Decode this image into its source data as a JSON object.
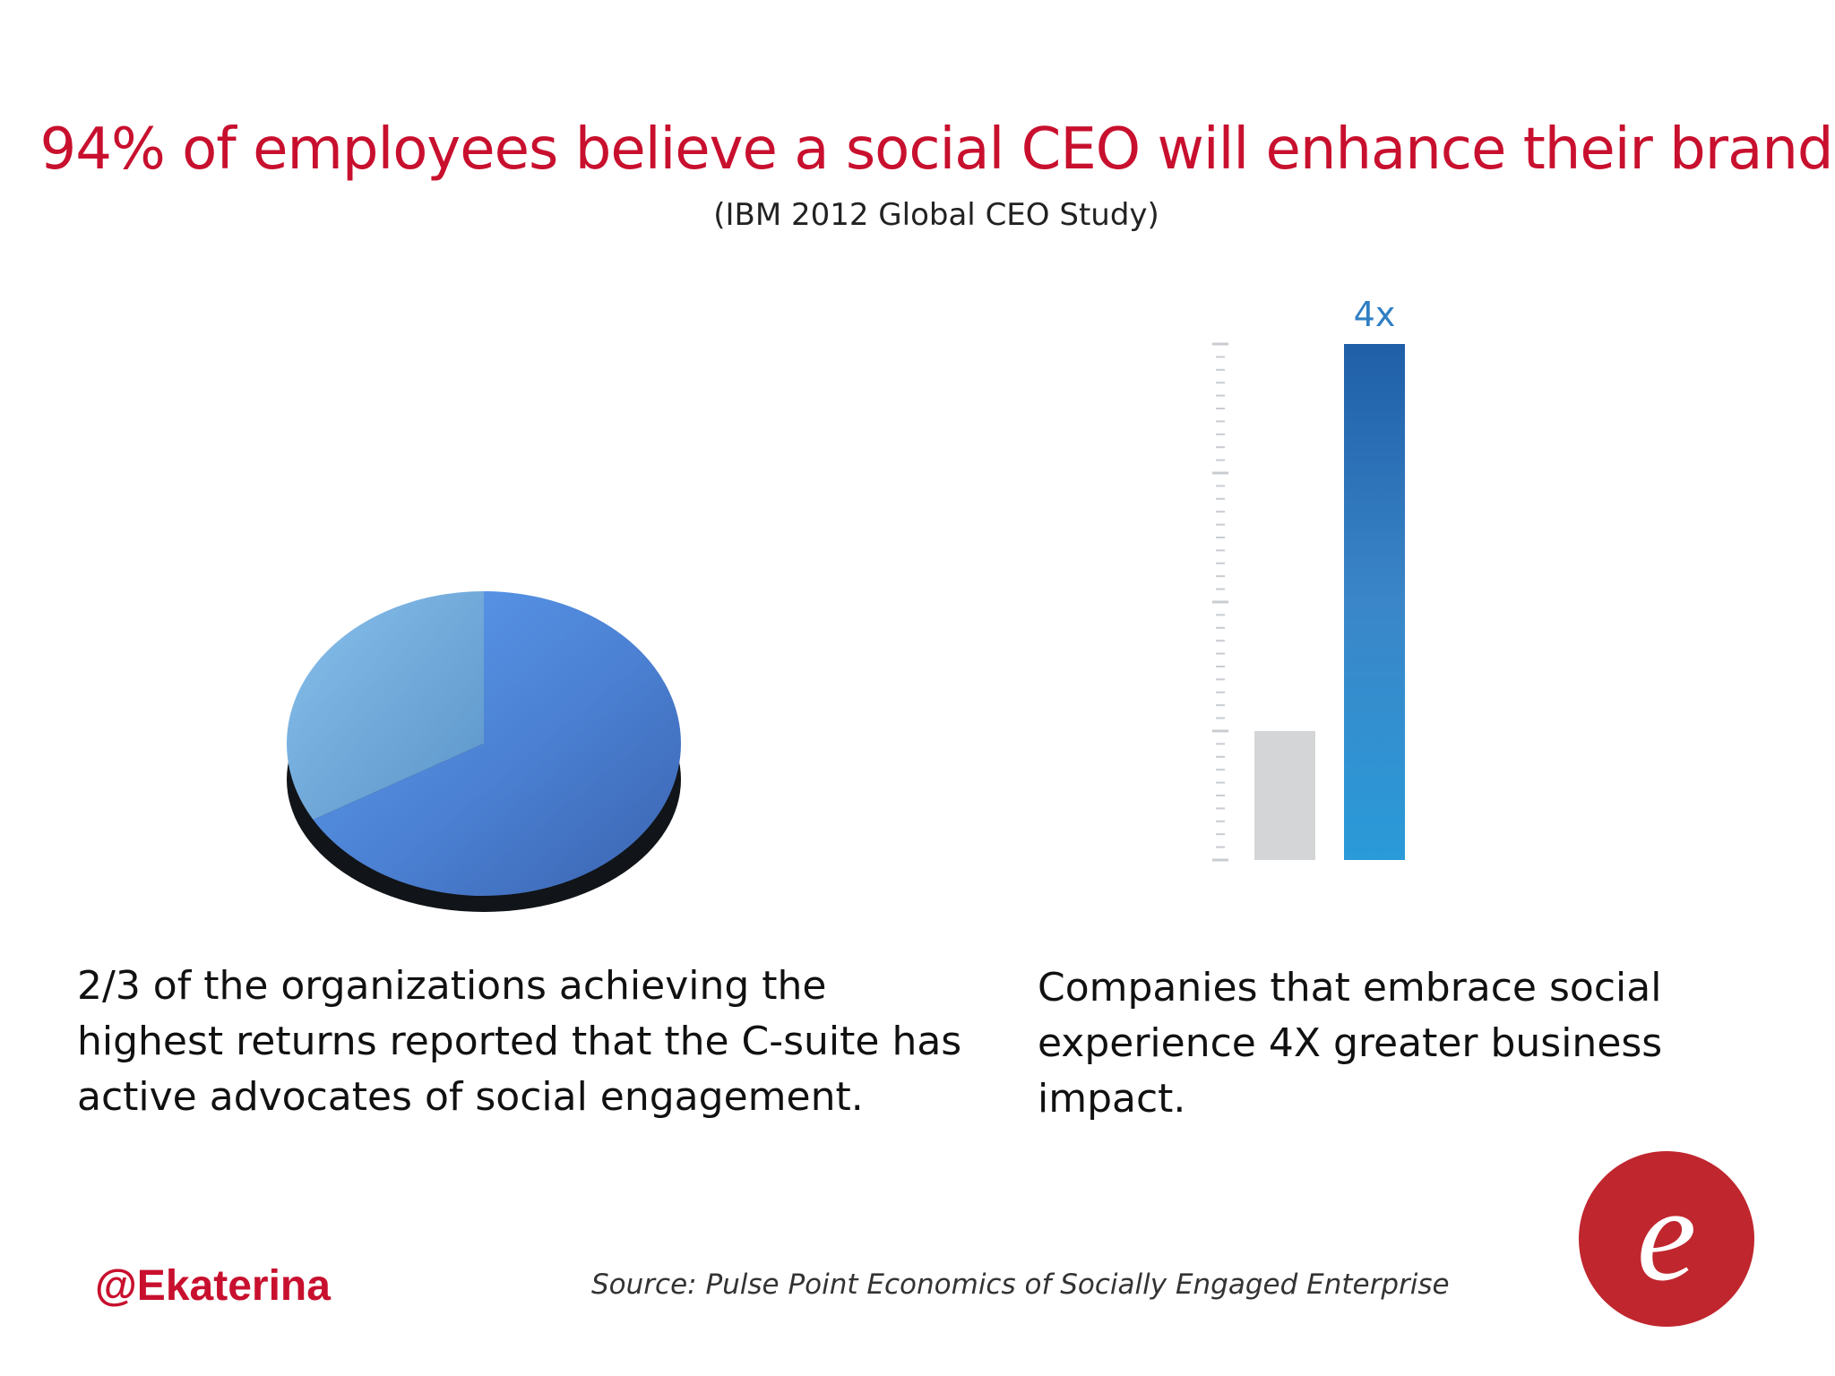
{
  "slide": {
    "title": "94% of employees believe a social CEO will enhance their brand",
    "subtitle": "(IBM 2012 Global CEO Study)",
    "caption_left": "2/3 of the organizations achieving the highest returns reported that the C-suite has active advocates of social engagement.",
    "caption_right": "Companies that embrace social experience 4X greater business impact.",
    "handle": "@Ekaterina",
    "source": "Source: Pulse Point Economics of Socially Engaged Enterprise",
    "logo_letter": "e",
    "colors": {
      "title": "#c8102e",
      "logo": "#c0262e"
    }
  },
  "chart_data": [
    {
      "type": "pie",
      "values": [
        0.6667,
        0.3333
      ],
      "colors": [
        "#4a7fd0",
        "#72aede"
      ]
    },
    {
      "type": "bar",
      "values": [
        1,
        4
      ],
      "data_labels": [
        "",
        "4x"
      ],
      "ylim": [
        0,
        4
      ],
      "colors": [
        "#d4d5d7",
        "#2f7fc4"
      ]
    }
  ]
}
